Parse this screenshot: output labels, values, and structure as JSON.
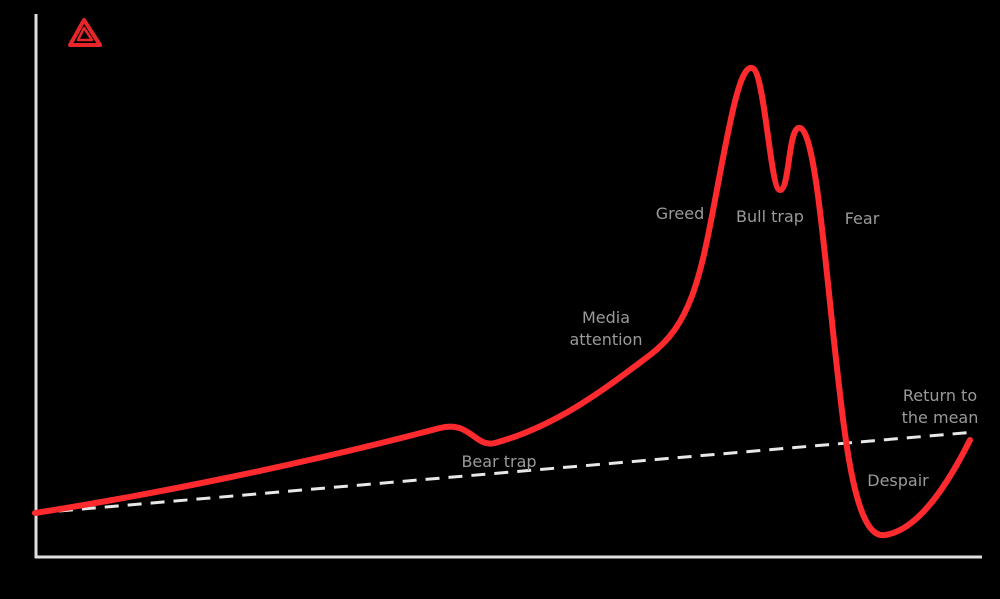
{
  "labels": {
    "greed": "Greed",
    "bull_trap": "Bull trap",
    "fear": "Fear",
    "media_attention": [
      "Media",
      "attention"
    ],
    "return_to_mean": [
      "Return to",
      "the mean"
    ],
    "bear_trap": "Bear trap",
    "despair": "Despair"
  }
}
